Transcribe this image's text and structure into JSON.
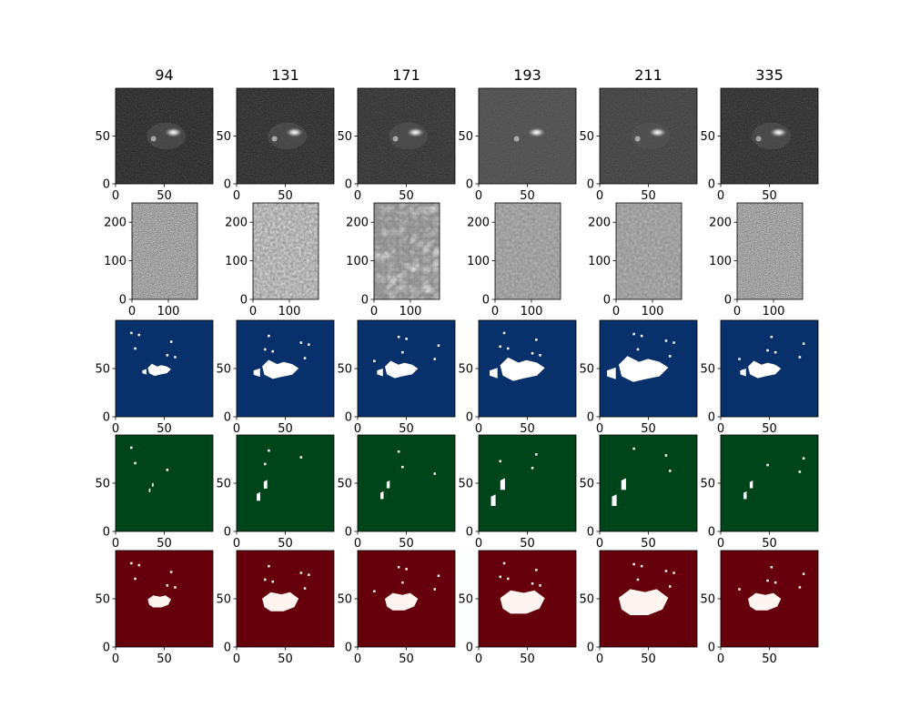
{
  "figure": {
    "columns": [
      "94",
      "131",
      "171",
      "193",
      "211",
      "335"
    ]
  },
  "chart_data": {
    "type": "heatmap",
    "description_rows": [
      "full-disk-crop grayscale",
      "magnetogram-like grayscale",
      "blue mask",
      "green mask",
      "red mask"
    ],
    "rows": [
      {
        "kind": "image",
        "colormap": "gray",
        "xticks": [
          "0",
          "50"
        ],
        "yticks": [
          "0",
          "50"
        ],
        "xlim": [
          0,
          100
        ],
        "ylim": [
          0,
          100
        ]
      },
      {
        "kind": "image",
        "colormap": "gray",
        "xticks": [
          "0",
          "100"
        ],
        "yticks": [
          "0",
          "100",
          "200"
        ],
        "xlim": [
          0,
          180
        ],
        "ylim": [
          0,
          250
        ]
      },
      {
        "kind": "mask",
        "colormap": "Blues",
        "background": "#08306b",
        "foreground": "#ffffff",
        "xticks": [
          "0",
          "50"
        ],
        "yticks": [
          "0",
          "50"
        ],
        "xlim": [
          0,
          100
        ],
        "ylim": [
          0,
          100
        ]
      },
      {
        "kind": "mask",
        "colormap": "Greens",
        "background": "#00441b",
        "foreground": "#ffffff",
        "xticks": [
          "0",
          "50"
        ],
        "yticks": [
          "0",
          "50"
        ],
        "xlim": [
          0,
          100
        ],
        "ylim": [
          0,
          100
        ]
      },
      {
        "kind": "mask",
        "colormap": "Reds",
        "background": "#67000d",
        "foreground": "#fff5f0",
        "xticks": [
          "0",
          "50"
        ],
        "yticks": [
          "0",
          "50"
        ],
        "xlim": [
          0,
          100
        ],
        "ylim": [
          0,
          100
        ]
      }
    ]
  }
}
